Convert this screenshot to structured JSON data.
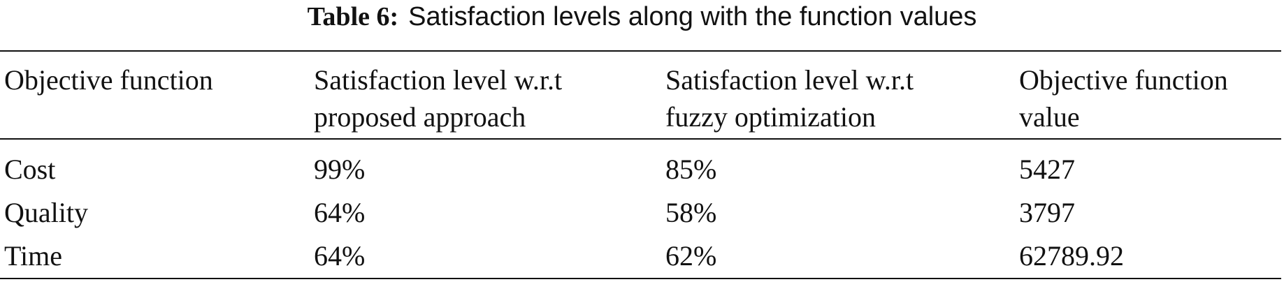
{
  "caption": {
    "label": "Table 6:",
    "text": "Satisfaction levels along with the function values"
  },
  "table": {
    "header": [
      [
        "Objective function"
      ],
      [
        "Satisfaction level w.r.t",
        "proposed approach"
      ],
      [
        "Satisfaction level w.r.t",
        "fuzzy optimization"
      ],
      [
        "Objective function",
        "value"
      ]
    ],
    "rows": [
      [
        "Cost",
        "99%",
        "85%",
        "5427"
      ],
      [
        "Quality",
        "64%",
        "58%",
        "3797"
      ],
      [
        "Time",
        "64%",
        "62%",
        "62789.92"
      ]
    ]
  }
}
